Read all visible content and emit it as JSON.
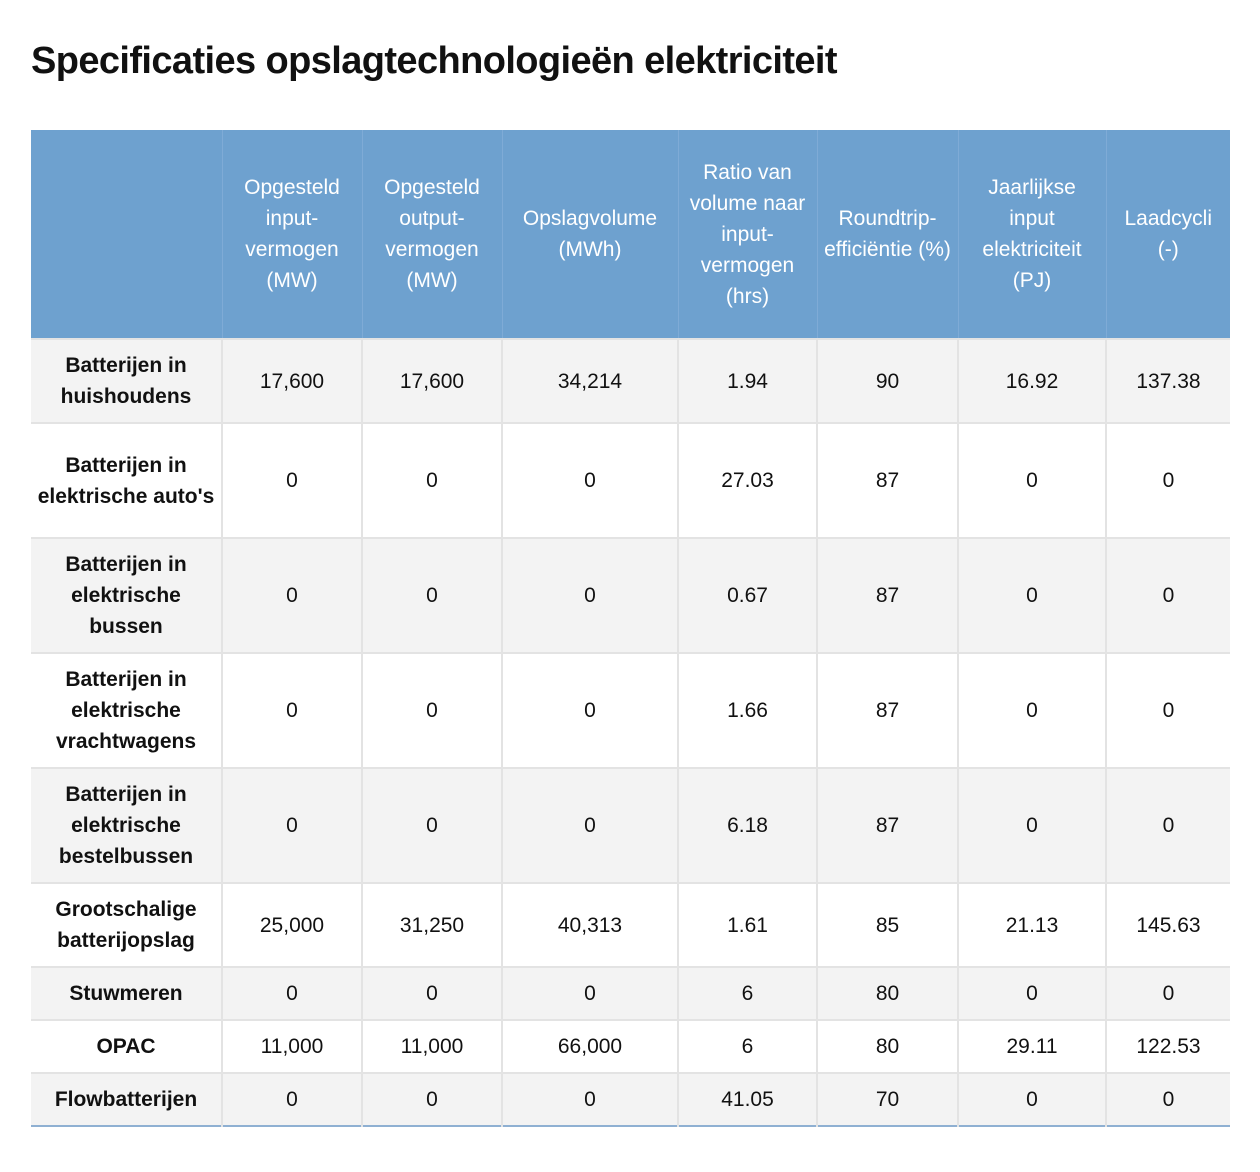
{
  "page": {
    "title": "Specificaties opslagtechnologieën elektriciteit"
  },
  "table": {
    "headers": [
      "",
      "Opgesteld input-vermogen (MW)",
      "Opgesteld output-vermogen (MW)",
      "Opslagvolume (MWh)",
      "Ratio van volume naar input-vermogen (hrs)",
      "Roundtrip-efficiëntie (%)",
      "Jaarlijkse input elektriciteit (PJ)",
      "Laadcycli (-)"
    ],
    "rows": [
      [
        "Batterijen in huishoudens",
        "17,600",
        "17,600",
        "34,214",
        "1.94",
        "90",
        "16.92",
        "137.38"
      ],
      [
        "Batterijen in elektrische auto's",
        "0",
        "0",
        "0",
        "27.03",
        "87",
        "0",
        "0"
      ],
      [
        "Batterijen in elektrische bussen",
        "0",
        "0",
        "0",
        "0.67",
        "87",
        "0",
        "0"
      ],
      [
        "Batterijen in elektrische vrachtwagens",
        "0",
        "0",
        "0",
        "1.66",
        "87",
        "0",
        "0"
      ],
      [
        "Batterijen in elektrische bestelbussen",
        "0",
        "0",
        "0",
        "6.18",
        "87",
        "0",
        "0"
      ],
      [
        "Grootschalige batterijopslag",
        "25,000",
        "31,250",
        "40,313",
        "1.61",
        "85",
        "21.13",
        "145.63"
      ],
      [
        "Stuwmeren",
        "0",
        "0",
        "0",
        "6",
        "80",
        "0",
        "0"
      ],
      [
        "OPAC",
        "11,000",
        "11,000",
        "66,000",
        "6",
        "80",
        "29.11",
        "122.53"
      ],
      [
        "Flowbatterijen",
        "0",
        "0",
        "0",
        "41.05",
        "70",
        "0",
        "0"
      ]
    ]
  },
  "colors": {
    "header_background": "#6ea1cf",
    "header_text": "#ffffff",
    "row_stripe": "#f3f3f3",
    "grid_line": "#e3e3e3"
  }
}
